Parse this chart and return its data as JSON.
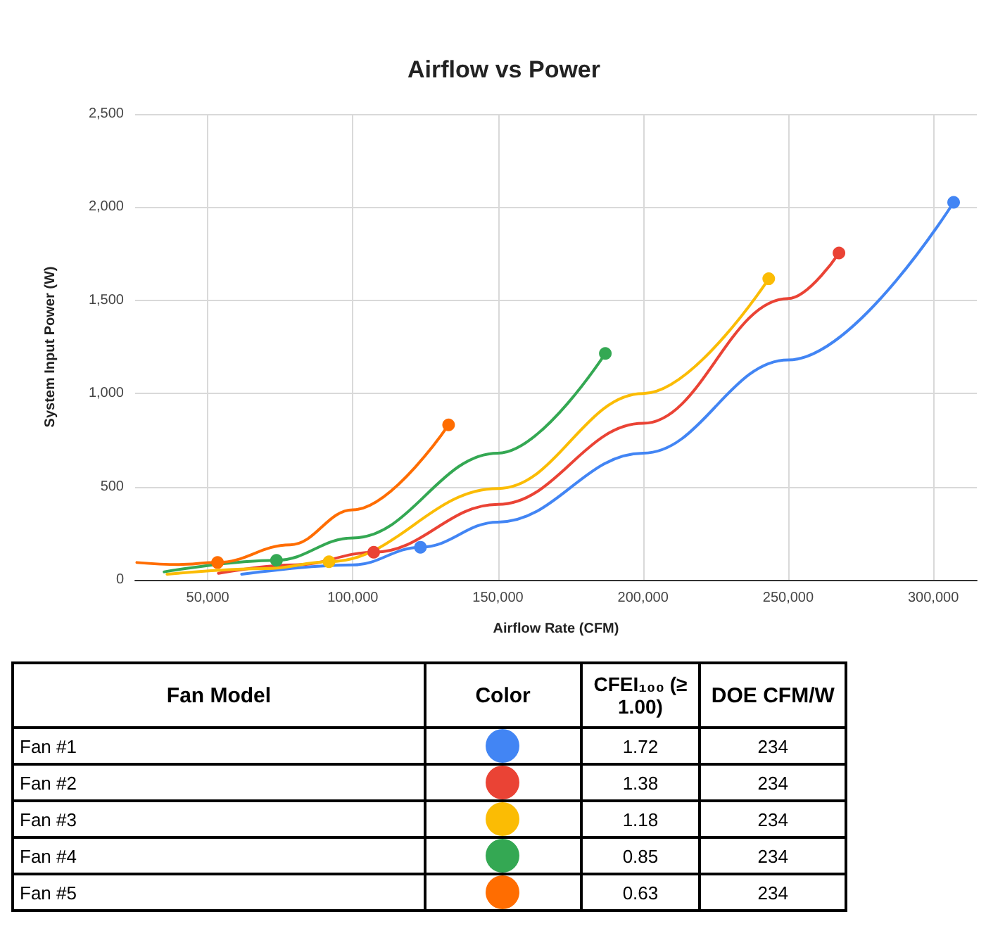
{
  "chart_data": [
    {
      "type": "line",
      "title": "Airflow vs Power",
      "xlabel": "Airflow Rate (CFM)",
      "ylabel": "System Input Power (W)",
      "xlim": [
        25000,
        315000
      ],
      "xticks": [
        {
          "value": 50000,
          "label": "50,000"
        },
        {
          "value": 100000,
          "label": "100,000"
        },
        {
          "value": 150000,
          "label": "150,000"
        },
        {
          "value": 200000,
          "label": "200,000"
        },
        {
          "value": 250000,
          "label": "250,000"
        },
        {
          "value": 300000,
          "label": "300,000"
        }
      ],
      "ylim": [
        0,
        2500
      ],
      "yticks": [
        0,
        500,
        {
          "value": 1000,
          "label": "1,000"
        },
        {
          "value": 1500,
          "label": "1,500"
        },
        {
          "value": 2000,
          "label": "2,000"
        },
        {
          "value": 2500,
          "label": "2,500"
        }
      ],
      "grid": true,
      "legend": false,
      "marker": "circle",
      "line_style": "solid",
      "series": [
        {
          "type": "line",
          "marker": "none",
          "color": "#4285f4",
          "x": [
            61700,
            100000,
            123300,
            150000,
            200000,
            250000,
            307000
          ],
          "values": [
            30,
            80,
            175,
            310,
            680,
            1180,
            2026
          ]
        },
        {
          "type": "line",
          "marker": "none",
          "color": "#ea4335",
          "x": [
            53700,
            80000,
            107200,
            150000,
            200000,
            250000,
            267500
          ],
          "values": [
            35,
            80,
            148,
            405,
            840,
            1510,
            1754
          ]
        },
        {
          "type": "line",
          "marker": "none",
          "color": "#fbbc04",
          "x": [
            36000,
            70000,
            91800,
            150000,
            200000,
            243300
          ],
          "values": [
            30,
            60,
            97,
            490,
            1000,
            1616
          ]
        },
        {
          "type": "line",
          "marker": "none",
          "color": "#34a853",
          "x": [
            35000,
            73700,
            100000,
            150000,
            187000
          ],
          "values": [
            43,
            105,
            225,
            680,
            1215
          ]
        },
        {
          "type": "line",
          "marker": "none",
          "color": "#ff6d01",
          "x": [
            25600,
            40000,
            53400,
            78400,
            100000,
            133000
          ],
          "values": [
            93,
            82,
            93,
            188,
            376,
            832
          ]
        },
        {
          "type": "scatter",
          "name": "Fan #1",
          "color": "#4285f4",
          "x": [
            123300,
            307000
          ],
          "values": [
            175,
            2026
          ]
        },
        {
          "type": "scatter",
          "name": "Fan #2",
          "color": "#ea4335",
          "x": [
            107200,
            267500
          ],
          "values": [
            148,
            1754
          ]
        },
        {
          "type": "scatter",
          "name": "Fan #3",
          "color": "#fbbc04",
          "x": [
            91800,
            243300
          ],
          "values": [
            97,
            1616
          ]
        },
        {
          "type": "scatter",
          "name": "Fan #4",
          "color": "#34a853",
          "x": [
            73700,
            187000
          ],
          "values": [
            105,
            1215
          ]
        },
        {
          "type": "scatter",
          "name": "Fan #5",
          "color": "#ff6d01",
          "x": [
            53400,
            133000
          ],
          "values": [
            93,
            832
          ]
        }
      ]
    },
    {
      "type": "other",
      "annotations": [
        "Fan Model",
        "Color",
        "CFEI₁₀₀ (≥ 1.00)",
        "DOE CFM/W",
        "1.72",
        "234",
        "1.38",
        "234",
        "1.18",
        "234",
        "0.85",
        "234",
        "0.63",
        "234"
      ]
    }
  ]
}
